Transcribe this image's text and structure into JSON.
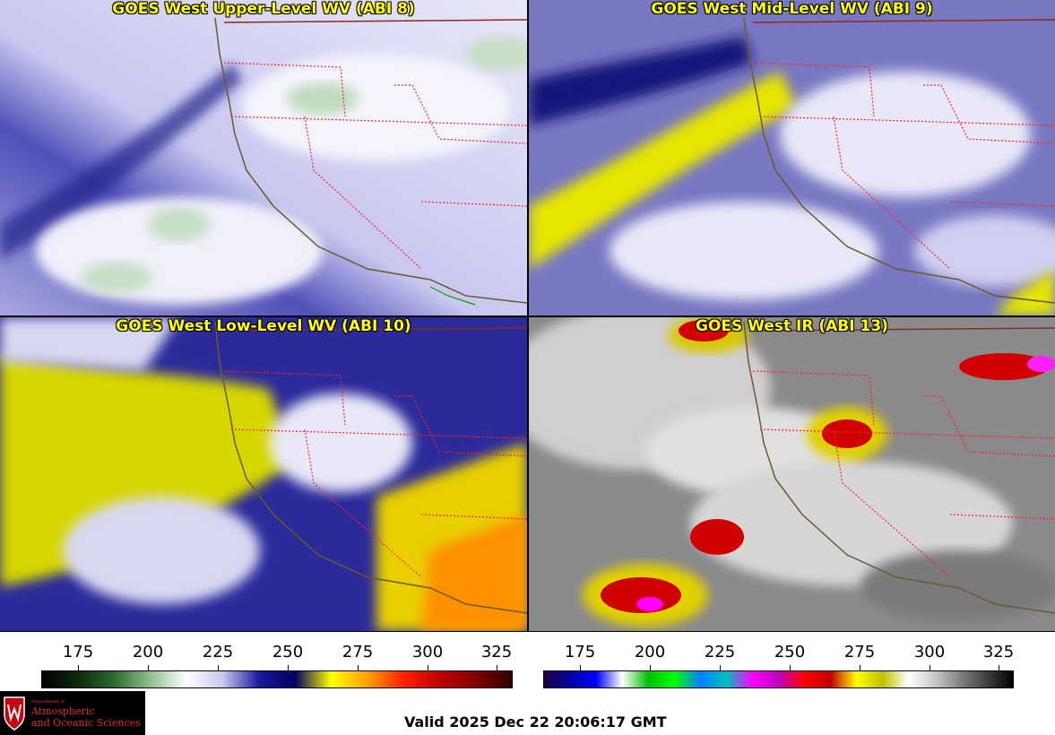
{
  "panels": [
    {
      "title": "GOES West Upper-Level WV (ABI 8)"
    },
    {
      "title": "GOES West Mid-Level WV (ABI 9)"
    },
    {
      "title": "GOES West Low-Level WV (ABI 10)"
    },
    {
      "title": "GOES West IR (ABI 13)"
    }
  ],
  "wv_colorbar": {
    "ticks": [
      "175",
      "200",
      "225",
      "250",
      "275",
      "300",
      "325"
    ],
    "colors": [
      "#000000",
      "#0d2a0d",
      "#2f6a2f",
      "#8fbf8f",
      "#ffffff",
      "#c8c8ee",
      "#1a1aa0",
      "#000060",
      "#ffff00",
      "#ffa000",
      "#ff2000",
      "#c00000",
      "#800000",
      "#300000"
    ]
  },
  "ir_colorbar": {
    "ticks": [
      "175",
      "200",
      "225",
      "250",
      "275",
      "300",
      "325"
    ],
    "colors": [
      "#200040",
      "#0000a0",
      "#0000ff",
      "#ffffff",
      "#00c000",
      "#00ff00",
      "#0080ff",
      "#00c0c0",
      "#ff00ff",
      "#c000c0",
      "#ff0000",
      "#c00000",
      "#ffff00",
      "#c0c000",
      "#ffffff",
      "#c8c8c8",
      "#808080",
      "#404040",
      "#000000"
    ]
  },
  "logo": {
    "small_text": "Department of",
    "line1": "Atmospheric",
    "line2": "and Oceanic Sciences"
  },
  "valid_time": "Valid 2025 Dec 22 20:06:17 GMT"
}
